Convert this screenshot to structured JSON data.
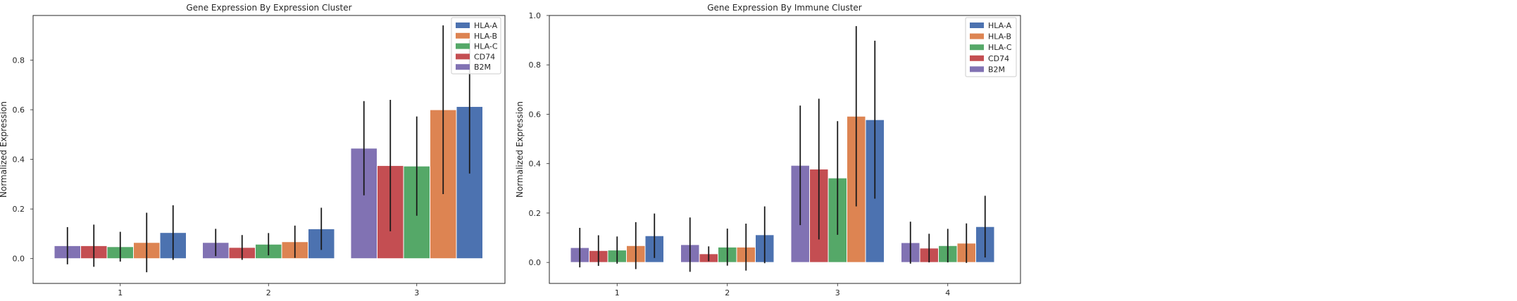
{
  "chart_data": [
    {
      "type": "bar",
      "title": "Gene Expression By Expression Cluster",
      "xlabel": "",
      "ylabel": "Normalized Expression",
      "ylim": [
        -0.1,
        0.98
      ],
      "yticks": [
        0.0,
        0.2,
        0.4,
        0.6,
        0.8
      ],
      "grid": false,
      "legend_position": "top-right",
      "categories": [
        "1",
        "2",
        "3"
      ],
      "series": [
        {
          "name": "HLA-A",
          "color": "#4c72b0",
          "values": [
            0.105,
            0.12,
            0.613
          ],
          "err": [
            0.11,
            0.085,
            0.27
          ]
        },
        {
          "name": "HLA-B",
          "color": "#dd8452",
          "values": [
            0.065,
            0.068,
            0.6
          ],
          "err": [
            0.12,
            0.065,
            0.34
          ]
        },
        {
          "name": "HLA-C",
          "color": "#55a868",
          "values": [
            0.048,
            0.058,
            0.373
          ],
          "err": [
            0.06,
            0.045,
            0.2
          ]
        },
        {
          "name": "CD74",
          "color": "#c44e52",
          "values": [
            0.052,
            0.045,
            0.375
          ],
          "err": [
            0.085,
            0.05,
            0.265
          ]
        },
        {
          "name": "B2M",
          "color": "#8172b3",
          "values": [
            0.052,
            0.065,
            0.445
          ],
          "err": [
            0.075,
            0.055,
            0.19
          ]
        }
      ]
    },
    {
      "type": "bar",
      "title": "Gene Expression By Immune Cluster",
      "xlabel": "",
      "ylabel": "Normalized Expression",
      "ylim": [
        -0.085,
        1.0
      ],
      "yticks": [
        0.0,
        0.2,
        0.4,
        0.6,
        0.8,
        1.0
      ],
      "grid": false,
      "legend_position": "top-right",
      "categories": [
        "1",
        "2",
        "3",
        "4"
      ],
      "series": [
        {
          "name": "HLA-A",
          "color": "#4c72b0",
          "values": [
            0.108,
            0.112,
            0.578,
            0.145
          ],
          "err": [
            0.09,
            0.115,
            0.32,
            0.125
          ]
        },
        {
          "name": "HLA-B",
          "color": "#dd8452",
          "values": [
            0.068,
            0.062,
            0.592,
            0.078
          ],
          "err": [
            0.095,
            0.095,
            0.365,
            0.08
          ]
        },
        {
          "name": "HLA-C",
          "color": "#55a868",
          "values": [
            0.05,
            0.062,
            0.342,
            0.068
          ],
          "err": [
            0.055,
            0.075,
            0.23,
            0.068
          ]
        },
        {
          "name": "CD74",
          "color": "#c44e52",
          "values": [
            0.048,
            0.035,
            0.378,
            0.058
          ],
          "err": [
            0.062,
            0.03,
            0.285,
            0.058
          ]
        },
        {
          "name": "B2M",
          "color": "#8172b3",
          "values": [
            0.06,
            0.072,
            0.393,
            0.08
          ],
          "err": [
            0.08,
            0.11,
            0.242,
            0.085
          ]
        }
      ]
    }
  ]
}
